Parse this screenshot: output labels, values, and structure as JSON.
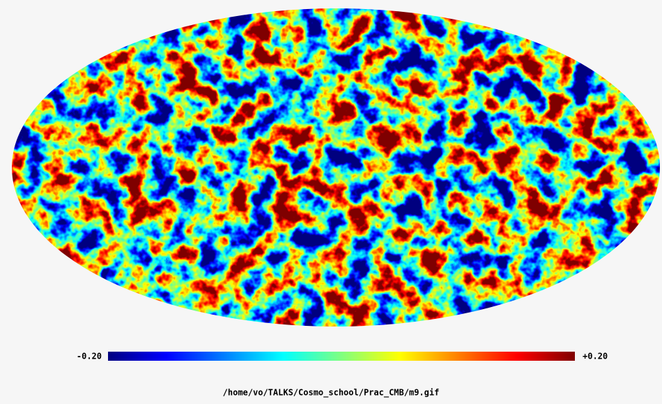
{
  "colorbar": {
    "min": {
      "value": -0.2,
      "label": "-0.20"
    },
    "max": {
      "value": 0.2,
      "label": "+0.20"
    }
  },
  "caption": "/home/vo/TALKS/Cosmo_school/Prac_CMB/m9.gif"
}
